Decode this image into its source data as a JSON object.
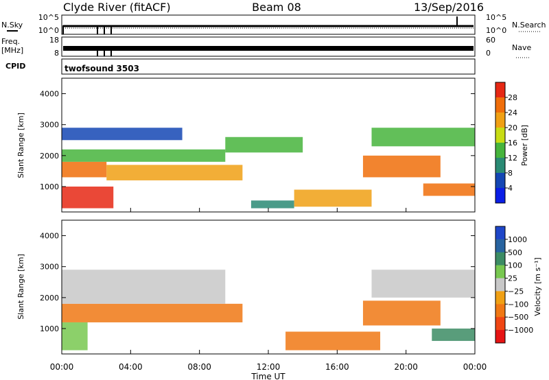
{
  "header": {
    "station": "Clyde River (fitACF)",
    "beam": "Beam 08",
    "date": "13/Sep/2016"
  },
  "top_panels": {
    "nsky_label": "N.Sky",
    "nsky_ticks": [
      "10^5",
      "10^0"
    ],
    "nsearch_label": "N.Search",
    "nsearch_ticks": [
      "10^5",
      "10^0"
    ],
    "freq_label_1": "Freq.",
    "freq_label_2": "[MHz]",
    "freq_ticks": [
      "18",
      "8"
    ],
    "nave_label": "Nave",
    "nave_ticks": [
      "60",
      "0"
    ],
    "cpid_label": "CPID",
    "cpid_value": "twofsound 3503"
  },
  "chart_data": [
    {
      "type": "heatmap",
      "name": "power",
      "ylabel": "Slant Range [km]",
      "xlabel": "Time UT",
      "x_ticks": [
        "00:00",
        "04:00",
        "08:00",
        "12:00",
        "16:00",
        "20:00",
        "00:00"
      ],
      "x_range_hours": [
        0,
        24
      ],
      "y_ticks": [
        "1000",
        "2000",
        "3000",
        "4000"
      ],
      "y_range_km": [
        180,
        4500
      ],
      "colorbar": {
        "label": "Power [dB]",
        "ticks": [
          "4",
          "8",
          "12",
          "16",
          "20",
          "24",
          "28"
        ],
        "colors": [
          "#0a1ee6",
          "#1446b4",
          "#2a8a74",
          "#46b43c",
          "#c8dc14",
          "#f0a014",
          "#f06e0a",
          "#e62814"
        ]
      },
      "regions": [
        {
          "t0": 0.0,
          "t1": 2.6,
          "r0": 1300,
          "r1": 1800,
          "level": 6
        },
        {
          "t0": 0.0,
          "t1": 3.0,
          "r0": 300,
          "r1": 1000,
          "level": 7
        },
        {
          "t0": 2.6,
          "t1": 10.5,
          "r0": 1200,
          "r1": 1700,
          "level": 5
        },
        {
          "t0": 0.0,
          "t1": 9.5,
          "r0": 1800,
          "r1": 2200,
          "level": 3
        },
        {
          "t0": 0.0,
          "t1": 7.0,
          "r0": 2500,
          "r1": 2900,
          "level": 1
        },
        {
          "t0": 9.5,
          "t1": 14.0,
          "r0": 2100,
          "r1": 2600,
          "level": 3
        },
        {
          "t0": 11.0,
          "t1": 13.5,
          "r0": 300,
          "r1": 550,
          "level": 2
        },
        {
          "t0": 13.5,
          "t1": 18.0,
          "r0": 350,
          "r1": 900,
          "level": 5
        },
        {
          "t0": 17.5,
          "t1": 22.0,
          "r0": 1300,
          "r1": 2000,
          "level": 6
        },
        {
          "t0": 21.0,
          "t1": 24.0,
          "r0": 700,
          "r1": 1100,
          "level": 6
        },
        {
          "t0": 18.0,
          "t1": 24.0,
          "r0": 2300,
          "r1": 2900,
          "level": 3
        }
      ]
    },
    {
      "type": "heatmap",
      "name": "velocity",
      "ylabel": "Slant Range [km]",
      "xlabel": "Time UT",
      "x_ticks": [
        "00:00",
        "04:00",
        "08:00",
        "12:00",
        "16:00",
        "20:00",
        "00:00"
      ],
      "x_range_hours": [
        0,
        24
      ],
      "y_ticks": [
        "1000",
        "2000",
        "3000",
        "4000"
      ],
      "y_range_km": [
        180,
        4500
      ],
      "colorbar": {
        "label": "Velocity [m s⁻¹]",
        "ticks": [
          "1000",
          "500",
          "100",
          "25",
          "−25",
          "−100",
          "−500",
          "−1000"
        ],
        "colors": [
          "#1e46c8",
          "#2864a0",
          "#3c8c64",
          "#78c850",
          "#c8c8c8",
          "#f0a014",
          "#f07814",
          "#f04614",
          "#e61414"
        ]
      },
      "regions": [
        {
          "t0": 0.0,
          "t1": 10.5,
          "r0": 1200,
          "r1": 1800,
          "level": 6
        },
        {
          "t0": 0.0,
          "t1": 9.5,
          "r0": 1800,
          "r1": 2900,
          "level": 4
        },
        {
          "t0": 0.0,
          "t1": 1.5,
          "r0": 300,
          "r1": 1200,
          "level": 3
        },
        {
          "t0": 13.0,
          "t1": 18.5,
          "r0": 300,
          "r1": 900,
          "level": 6
        },
        {
          "t0": 17.5,
          "t1": 22.0,
          "r0": 1100,
          "r1": 1900,
          "level": 6
        },
        {
          "t0": 21.5,
          "t1": 24.0,
          "r0": 600,
          "r1": 1000,
          "level": 2
        },
        {
          "t0": 18.0,
          "t1": 24.0,
          "r0": 2000,
          "r1": 2900,
          "level": 4
        }
      ]
    }
  ]
}
